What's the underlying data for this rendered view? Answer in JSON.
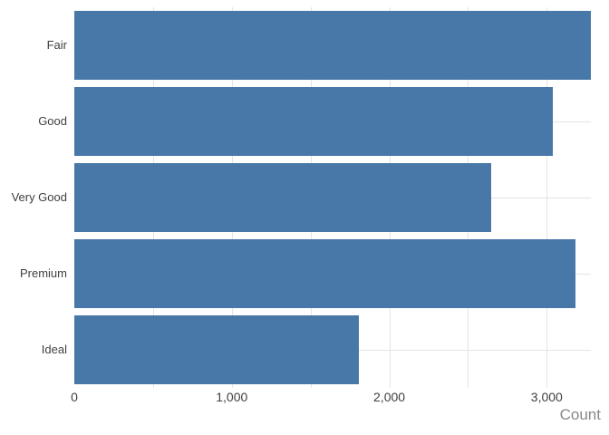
{
  "chart_data": {
    "type": "bar",
    "orientation": "horizontal",
    "title": "",
    "categories": [
      "Fair",
      "Good",
      "Very Good",
      "Premium",
      "Ideal"
    ],
    "values": [
      3280,
      3040,
      2645,
      3180,
      1805
    ],
    "xlabel": "Count",
    "ylabel": "",
    "xlim": [
      0,
      3280
    ],
    "x_ticks": [
      {
        "value": 0,
        "label": "0"
      },
      {
        "value": 1000,
        "label": "1,000"
      },
      {
        "value": 2000,
        "label": "2,000"
      },
      {
        "value": 3000,
        "label": "3,000"
      }
    ],
    "x_gridlines": [
      500,
      1000,
      1500,
      2000,
      2500,
      3000
    ],
    "grid": "on",
    "legend": "none",
    "colors": {
      "bar": "#4878a8",
      "gridline": "#e4e4e4",
      "tick_label": "#3f3f3f",
      "category_label": "#3f3f3f",
      "axis_title": "#898989",
      "background": "#ffffff"
    }
  }
}
